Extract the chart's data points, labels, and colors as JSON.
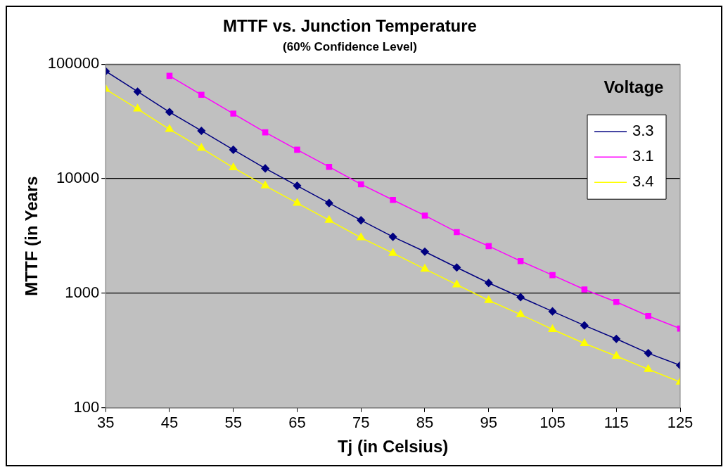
{
  "chart_data": {
    "type": "line",
    "title": "MTTF vs. Junction Temperature",
    "subtitle": "(60% Confidence Level)",
    "xlabel": "Tj (in Celsius)",
    "ylabel": "MTTF (in Years",
    "legend_title": "Voltage",
    "x": [
      35,
      40,
      45,
      50,
      55,
      60,
      65,
      70,
      75,
      80,
      85,
      90,
      95,
      100,
      105,
      110,
      115,
      120,
      125
    ],
    "series": [
      {
        "name": "3.3",
        "color": "#000080",
        "marker": "diamond",
        "values": [
          86800,
          57600,
          38200,
          26200,
          17900,
          12300,
          8680,
          6130,
          4340,
          3110,
          2310,
          1680,
          1230,
          925,
          695,
          524,
          400,
          300,
          235
        ]
      },
      {
        "name": "3.1",
        "color": "#ff00ff",
        "marker": "square",
        "values": [
          null,
          null,
          79000,
          54000,
          37000,
          25400,
          17900,
          12700,
          8950,
          6530,
          4770,
          3420,
          2580,
          1910,
          1440,
          1080,
          840,
          633,
          492
        ]
      },
      {
        "name": "3.4",
        "color": "#ffff00",
        "marker": "triangle",
        "values": [
          60400,
          40700,
          27000,
          18500,
          12500,
          8680,
          6130,
          4340,
          3060,
          2240,
          1630,
          1190,
          867,
          653,
          484,
          365,
          283,
          217,
          168
        ]
      }
    ],
    "xlim": [
      35,
      125
    ],
    "xticks": [
      35,
      45,
      55,
      65,
      75,
      85,
      95,
      105,
      115,
      125
    ],
    "ylim": [
      100,
      100000
    ],
    "yticks": [
      100,
      1000,
      10000,
      100000
    ],
    "log": "y",
    "grid": "y",
    "legend": "top right",
    "line_style": "solid"
  }
}
